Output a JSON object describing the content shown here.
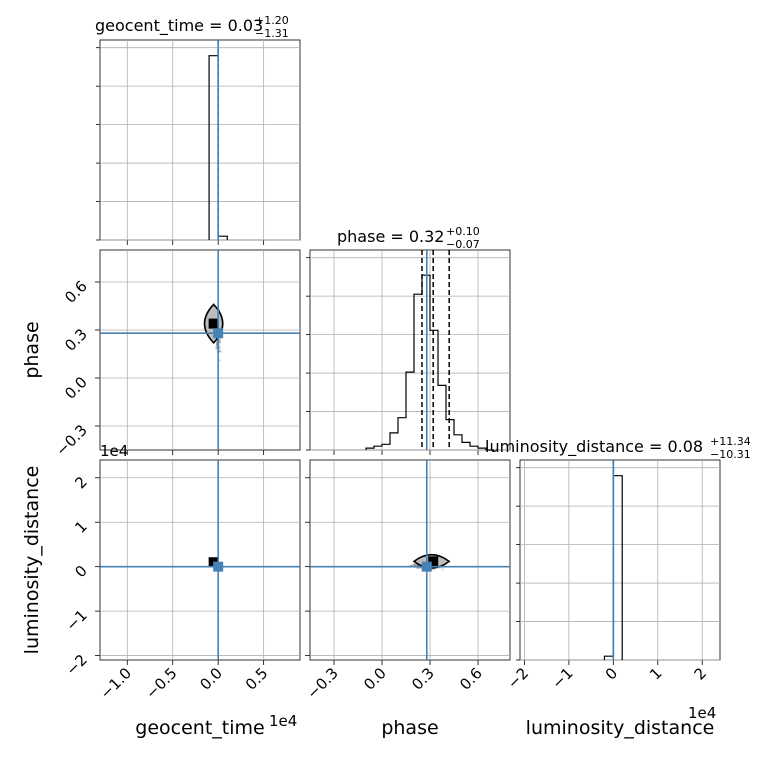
{
  "chart_data": {
    "type": "corner",
    "parameters": [
      "geocent_time",
      "phase",
      "luminosity_distance"
    ],
    "titles": [
      {
        "param": "geocent_time",
        "text": "geocent_time = 0.03",
        "upper": "+1.20",
        "lower": "−1.31"
      },
      {
        "param": "phase",
        "text": "phase = 0.32",
        "upper": "+0.10",
        "lower": "−0.07"
      },
      {
        "param": "luminosity_distance",
        "text": "luminosity_distance = 0.08",
        "upper": "+11.34",
        "lower": "−10.31"
      }
    ],
    "axes": {
      "geocent_time": {
        "range": [
          -1.3,
          0.9
        ],
        "ticks": [
          -1.0,
          -0.5,
          0.0,
          0.5
        ],
        "tick_labels": [
          "−1.0",
          "−0.5",
          "0.0",
          "0.5"
        ],
        "offset": "1e4",
        "truth": 0.0,
        "quantiles": [
          0.0
        ]
      },
      "phase": {
        "range": [
          -0.45,
          0.8
        ],
        "ticks": [
          -0.3,
          0.0,
          0.3,
          0.6
        ],
        "tick_labels": [
          "−0.3",
          "0.0",
          "0.3",
          "0.6"
        ],
        "truth": 0.28,
        "quantiles": [
          0.25,
          0.32,
          0.42
        ]
      },
      "luminosity_distance": {
        "range": [
          -2.1,
          2.4
        ],
        "ticks": [
          -2,
          -1,
          0,
          1,
          2
        ],
        "tick_labels": [
          "−2",
          "−1",
          "0",
          "1",
          "2"
        ],
        "offset": "1e4",
        "truth": 0.0,
        "quantiles": [
          0.0
        ]
      }
    },
    "histograms": {
      "geocent_time": {
        "edges": [
          -0.1,
          0.0,
          0.1
        ],
        "counts": [
          0.97,
          0.02
        ]
      },
      "phase": {
        "edges": [
          -0.1,
          -0.05,
          0.0,
          0.05,
          0.1,
          0.15,
          0.2,
          0.25,
          0.3,
          0.35,
          0.4,
          0.45,
          0.5,
          0.55,
          0.6,
          0.65,
          0.7
        ],
        "counts": [
          0.01,
          0.02,
          0.03,
          0.09,
          0.17,
          0.41,
          0.82,
          0.92,
          0.63,
          0.34,
          0.16,
          0.08,
          0.04,
          0.02,
          0.01,
          0.0
        ]
      },
      "luminosity_distance": {
        "edges": [
          -0.2,
          0.0,
          0.2
        ],
        "counts": [
          0.02,
          0.97
        ]
      }
    },
    "scatter": {
      "phase_vs_geocent_time": {
        "mean": [
          -0.05,
          0.34
        ],
        "contour": {
          "x_half_width": 0.1,
          "y_range": [
            0.22,
            0.46
          ]
        }
      },
      "luminosity_distance_vs_geocent_time": {
        "mean": [
          -0.05,
          0.1
        ],
        "contour": {
          "x_half_width": 0.05,
          "y_half_height": 0.1
        }
      },
      "luminosity_distance_vs_phase": {
        "mean": [
          0.32,
          0.12
        ],
        "contour": {
          "x_range": [
            0.2,
            0.42
          ],
          "y_half_height": 0.15
        }
      }
    },
    "grid": true
  }
}
